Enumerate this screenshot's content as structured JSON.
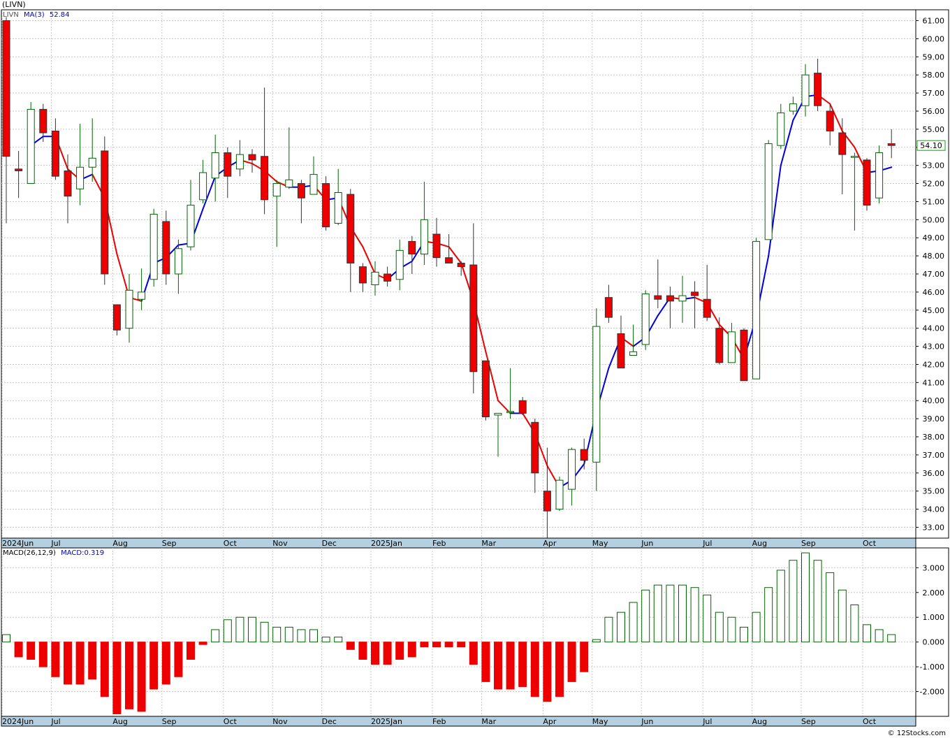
{
  "header": {
    "symbol": "(LIVN)"
  },
  "price_legend": {
    "symbol": "LIVN",
    "ma_label": "MA(3)",
    "ma_value": "52.84"
  },
  "last_price": "54.10",
  "macd_legend": {
    "label": "MACD(26,12,9)",
    "value_label": "MACD:0.319"
  },
  "watermark": "© 12Stocks.com",
  "colors": {
    "up": "#ffffff",
    "up_outline": "#006400",
    "down": "#ee0000",
    "ma_up": "#0000dd",
    "ma_down": "#ee0000",
    "grid": "#c8c8c8",
    "axis_band": "#b4d0e0",
    "price_tag": "#00aa00"
  },
  "chart_data": [
    {
      "type": "candlestick",
      "name": "price",
      "ylim": [
        32.4,
        61.6
      ],
      "y_ticks": [
        33,
        34,
        35,
        36,
        37,
        38,
        39,
        40,
        41,
        42,
        43,
        44,
        45,
        46,
        47,
        48,
        49,
        50,
        51,
        52,
        53,
        54,
        55,
        56,
        57,
        58,
        59,
        60,
        61
      ],
      "month_labels": [
        {
          "label": "2024Jun",
          "bar": 0
        },
        {
          "label": "Jul",
          "bar": 4
        },
        {
          "label": "Aug",
          "bar": 9
        },
        {
          "label": "Sep",
          "bar": 13
        },
        {
          "label": "Oct",
          "bar": 18
        },
        {
          "label": "Nov",
          "bar": 22
        },
        {
          "label": "Dec",
          "bar": 26
        },
        {
          "label": "2025Jan",
          "bar": 30
        },
        {
          "label": "Feb",
          "bar": 35
        },
        {
          "label": "Mar",
          "bar": 39
        },
        {
          "label": "Apr",
          "bar": 44
        },
        {
          "label": "May",
          "bar": 48
        },
        {
          "label": "Jun",
          "bar": 52
        },
        {
          "label": "Jul",
          "bar": 57
        },
        {
          "label": "Aug",
          "bar": 61
        },
        {
          "label": "Sep",
          "bar": 65
        },
        {
          "label": "Oct",
          "bar": 70
        }
      ],
      "ohlc": [
        [
          61.0,
          61.2,
          49.8,
          53.5
        ],
        [
          52.8,
          53.8,
          51.2,
          52.7
        ],
        [
          52.0,
          56.5,
          52.0,
          56.1
        ],
        [
          56.1,
          56.4,
          54.3,
          54.8
        ],
        [
          54.9,
          55.6,
          52.2,
          52.4
        ],
        [
          52.7,
          53.6,
          49.8,
          51.3
        ],
        [
          51.7,
          55.3,
          50.8,
          52.9
        ],
        [
          52.9,
          55.6,
          52.1,
          53.4
        ],
        [
          53.8,
          54.6,
          46.4,
          47.0
        ],
        [
          45.3,
          45.3,
          43.6,
          43.9
        ],
        [
          44.0,
          47.0,
          43.2,
          46.1
        ],
        [
          45.6,
          47.3,
          45.0,
          46.0
        ],
        [
          46.7,
          50.6,
          46.3,
          50.3
        ],
        [
          49.9,
          50.5,
          46.4,
          47.0
        ],
        [
          47.0,
          48.9,
          45.9,
          48.4
        ],
        [
          48.5,
          52.2,
          48.3,
          50.8
        ],
        [
          51.1,
          53.3,
          50.9,
          52.6
        ],
        [
          52.3,
          54.7,
          51.0,
          53.7
        ],
        [
          53.7,
          54.0,
          51.2,
          52.4
        ],
        [
          52.8,
          54.4,
          52.4,
          53.6
        ],
        [
          53.6,
          53.9,
          52.6,
          53.3
        ],
        [
          53.5,
          57.3,
          50.3,
          51.1
        ],
        [
          51.3,
          52.2,
          48.5,
          52.0
        ],
        [
          51.8,
          55.1,
          51.7,
          52.2
        ],
        [
          52.0,
          52.2,
          49.8,
          51.2
        ],
        [
          51.4,
          53.5,
          51.4,
          52.5
        ],
        [
          52.0,
          52.4,
          49.4,
          49.6
        ],
        [
          49.8,
          52.8,
          49.7,
          51.5
        ],
        [
          51.4,
          51.7,
          46.0,
          47.6
        ],
        [
          47.4,
          47.6,
          46.0,
          46.5
        ],
        [
          46.4,
          47.7,
          45.8,
          47.1
        ],
        [
          47.0,
          47.4,
          46.3,
          46.6
        ],
        [
          46.7,
          48.9,
          46.1,
          48.3
        ],
        [
          48.8,
          49.1,
          47.0,
          48.1
        ],
        [
          48.1,
          52.1,
          47.5,
          50.0
        ],
        [
          49.2,
          50.1,
          47.4,
          47.9
        ],
        [
          47.9,
          49.2,
          47.6,
          47.6
        ],
        [
          47.6,
          47.7,
          46.9,
          47.4
        ],
        [
          47.5,
          49.8,
          40.4,
          41.6
        ],
        [
          42.2,
          42.2,
          38.9,
          39.1
        ],
        [
          39.2,
          39.3,
          36.9,
          39.3
        ],
        [
          39.4,
          41.8,
          39.0,
          39.4
        ],
        [
          40.0,
          40.2,
          39.2,
          39.3
        ],
        [
          38.8,
          39.0,
          34.9,
          36.0
        ],
        [
          35.0,
          37.4,
          32.4,
          33.9
        ],
        [
          34.0,
          35.8,
          33.9,
          35.6
        ],
        [
          35.1,
          37.4,
          34.2,
          37.3
        ],
        [
          37.3,
          37.9,
          36.2,
          36.7
        ],
        [
          36.6,
          45.1,
          35.0,
          44.1
        ],
        [
          45.7,
          46.4,
          44.3,
          44.6
        ],
        [
          43.7,
          44.7,
          41.8,
          41.8
        ],
        [
          42.5,
          44.2,
          42.5,
          42.7
        ],
        [
          43.1,
          46.1,
          42.8,
          45.9
        ],
        [
          45.8,
          47.8,
          45.1,
          45.6
        ],
        [
          45.8,
          46.3,
          44.0,
          45.5
        ],
        [
          45.5,
          46.9,
          44.3,
          45.8
        ],
        [
          46.0,
          46.6,
          44.0,
          45.8
        ],
        [
          45.6,
          47.5,
          44.4,
          44.6
        ],
        [
          44.0,
          44.6,
          42.0,
          42.1
        ],
        [
          42.1,
          44.3,
          42.1,
          43.8
        ],
        [
          43.9,
          44.0,
          41.2,
          41.1
        ],
        [
          41.2,
          49.0,
          41.2,
          48.8
        ],
        [
          48.9,
          54.4,
          48.9,
          54.2
        ],
        [
          54.1,
          56.4,
          53.9,
          55.9
        ],
        [
          56.0,
          56.8,
          55.8,
          56.4
        ],
        [
          56.3,
          58.6,
          55.7,
          58.0
        ],
        [
          58.1,
          58.9,
          56.0,
          56.3
        ],
        [
          56.0,
          56.4,
          54.1,
          54.9
        ],
        [
          54.8,
          55.6,
          51.4,
          53.6
        ],
        [
          53.5,
          53.7,
          49.4,
          53.5
        ],
        [
          53.3,
          53.4,
          50.5,
          50.8
        ],
        [
          51.2,
          54.1,
          50.9,
          53.7
        ],
        [
          54.2,
          55.0,
          53.4,
          54.1
        ]
      ],
      "ma3": [
        null,
        null,
        54.1,
        54.6,
        54.6,
        52.8,
        52.2,
        52.5,
        51.2,
        48.1,
        45.7,
        45.5,
        47.6,
        47.9,
        48.6,
        48.7,
        50.6,
        52.4,
        52.9,
        53.3,
        53.1,
        52.7,
        52.1,
        51.8,
        51.8,
        51.9,
        51.1,
        51.2,
        49.6,
        48.5,
        47.0,
        46.7,
        47.3,
        47.7,
        48.8,
        48.7,
        48.5,
        47.6,
        45.5,
        42.7,
        40.0,
        39.3,
        39.3,
        38.2,
        36.4,
        35.2,
        35.6,
        36.5,
        39.4,
        41.8,
        43.5,
        43.0,
        43.5,
        44.7,
        45.7,
        45.6,
        45.7,
        45.4,
        44.2,
        43.5,
        42.3,
        44.6,
        48.0,
        53.0,
        55.5,
        56.8,
        56.9,
        56.4,
        54.9,
        54.0,
        52.6,
        52.7,
        52.9
      ]
    },
    {
      "type": "bar",
      "name": "MACD",
      "ylim": [
        -3.0,
        3.8
      ],
      "y_ticks": [
        -2.0,
        -1.0,
        0.0,
        1.0,
        2.0,
        3.0
      ],
      "values": [
        0.3,
        -0.6,
        -0.7,
        -1.0,
        -1.4,
        -1.7,
        -1.7,
        -1.5,
        -2.2,
        -2.9,
        -2.7,
        -2.8,
        -1.9,
        -1.7,
        -1.4,
        -0.7,
        -0.1,
        0.5,
        0.9,
        1.0,
        1.0,
        0.8,
        0.6,
        0.6,
        0.5,
        0.5,
        0.2,
        0.2,
        -0.3,
        -0.7,
        -0.9,
        -0.9,
        -0.7,
        -0.6,
        -0.2,
        -0.2,
        -0.2,
        -0.2,
        -0.9,
        -1.6,
        -1.9,
        -1.9,
        -1.8,
        -2.2,
        -2.4,
        -2.2,
        -1.6,
        -1.2,
        0.1,
        1.0,
        1.2,
        1.6,
        2.1,
        2.3,
        2.3,
        2.3,
        2.2,
        1.9,
        1.2,
        1.0,
        0.6,
        1.2,
        2.2,
        2.9,
        3.3,
        3.6,
        3.3,
        2.8,
        2.1,
        1.5,
        0.7,
        0.5,
        0.3
      ]
    }
  ]
}
